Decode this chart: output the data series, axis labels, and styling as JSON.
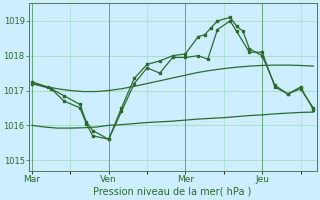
{
  "xlabel": "Pression niveau de la mer( hPa )",
  "bg_color": "#cceeff",
  "grid_color": "#aaddcc",
  "line_color": "#2d6a2d",
  "ylim": [
    1014.7,
    1019.5
  ],
  "yticks": [
    1015,
    1016,
    1017,
    1018,
    1019
  ],
  "xtick_labels": [
    "Mar",
    "Ven",
    "Mer",
    "Jeu"
  ],
  "xtick_pos": [
    0,
    24,
    48,
    72
  ],
  "xlim": [
    -1,
    89
  ],
  "smooth1_x": [
    0,
    4,
    8,
    12,
    16,
    20,
    24,
    28,
    32,
    36,
    40,
    44,
    48,
    52,
    56,
    60,
    64,
    68,
    72,
    76,
    80,
    84,
    88
  ],
  "smooth1_y": [
    1016.0,
    1015.95,
    1015.92,
    1015.92,
    1015.93,
    1015.95,
    1016.0,
    1016.02,
    1016.05,
    1016.08,
    1016.1,
    1016.12,
    1016.15,
    1016.18,
    1016.2,
    1016.22,
    1016.25,
    1016.28,
    1016.3,
    1016.33,
    1016.35,
    1016.37,
    1016.38
  ],
  "smooth2_x": [
    0,
    4,
    8,
    12,
    16,
    20,
    24,
    28,
    32,
    36,
    40,
    44,
    48,
    52,
    56,
    60,
    64,
    68,
    72,
    76,
    80,
    84,
    88
  ],
  "smooth2_y": [
    1017.2,
    1017.12,
    1017.05,
    1017.0,
    1016.97,
    1016.97,
    1017.0,
    1017.05,
    1017.12,
    1017.2,
    1017.28,
    1017.36,
    1017.44,
    1017.52,
    1017.58,
    1017.63,
    1017.67,
    1017.7,
    1017.72,
    1017.73,
    1017.73,
    1017.72,
    1017.7
  ],
  "jagged1_x": [
    0,
    5,
    10,
    15,
    17,
    19,
    24,
    28,
    32,
    36,
    40,
    44,
    48,
    52,
    54,
    56,
    58,
    62,
    64,
    66,
    68,
    72,
    76,
    80,
    84,
    88
  ],
  "jagged1_y": [
    1017.25,
    1017.1,
    1016.85,
    1016.6,
    1016.1,
    1015.85,
    1015.6,
    1016.5,
    1017.35,
    1017.75,
    1017.85,
    1018.0,
    1018.05,
    1018.55,
    1018.6,
    1018.8,
    1019.0,
    1019.1,
    1018.85,
    1018.7,
    1018.2,
    1018.0,
    1017.15,
    1016.9,
    1017.1,
    1016.45
  ],
  "jagged2_x": [
    0,
    6,
    10,
    15,
    17,
    19,
    24,
    28,
    32,
    36,
    40,
    44,
    48,
    52,
    55,
    58,
    62,
    64,
    68,
    72,
    76,
    80,
    84,
    88
  ],
  "jagged2_y": [
    1017.2,
    1017.05,
    1016.7,
    1016.5,
    1016.05,
    1015.7,
    1015.6,
    1016.4,
    1017.2,
    1017.65,
    1017.5,
    1017.95,
    1017.95,
    1018.0,
    1017.9,
    1018.75,
    1019.0,
    1018.7,
    1018.1,
    1018.1,
    1017.1,
    1016.9,
    1017.05,
    1016.5
  ]
}
